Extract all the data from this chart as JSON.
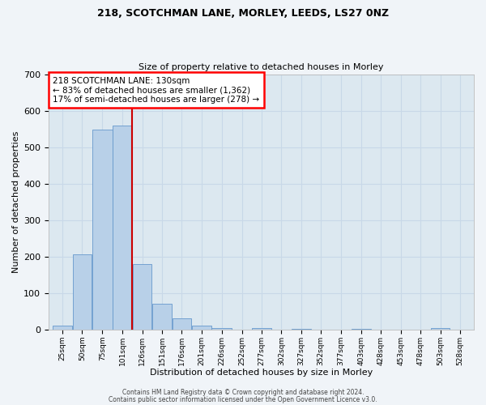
{
  "title1": "218, SCOTCHMAN LANE, MORLEY, LEEDS, LS27 0NZ",
  "title2": "Size of property relative to detached houses in Morley",
  "xlabel": "Distribution of detached houses by size in Morley",
  "ylabel": "Number of detached properties",
  "annotation_line1": "218 SCOTCHMAN LANE: 130sqm",
  "annotation_line2": "← 83% of detached houses are smaller (1,362)",
  "annotation_line3": "17% of semi-detached houses are larger (278) →",
  "bar_color": "#b8d0e8",
  "bar_edge_color": "#6699cc",
  "background_color": "#dce8f0",
  "grid_color": "#c8d8e8",
  "red_line_color": "#cc0000",
  "bin_starts": [
    25,
    50,
    75,
    101,
    126,
    151,
    176,
    201,
    226,
    252,
    277,
    302,
    327,
    352,
    377,
    403,
    428,
    453,
    478,
    503,
    528
  ],
  "bin_labels": [
    "25sqm",
    "50sqm",
    "75sqm",
    "101sqm",
    "126sqm",
    "151sqm",
    "176sqm",
    "201sqm",
    "226sqm",
    "252sqm",
    "277sqm",
    "302sqm",
    "327sqm",
    "352sqm",
    "377sqm",
    "403sqm",
    "428sqm",
    "453sqm",
    "478sqm",
    "503sqm",
    "528sqm"
  ],
  "values": [
    10,
    205,
    548,
    560,
    180,
    70,
    30,
    10,
    5,
    0,
    3,
    0,
    2,
    0,
    0,
    2,
    0,
    0,
    0,
    3,
    0
  ],
  "red_line_x": 126,
  "ylim": [
    0,
    700
  ],
  "yticks": [
    0,
    100,
    200,
    300,
    400,
    500,
    600,
    700
  ],
  "footer1": "Contains HM Land Registry data © Crown copyright and database right 2024.",
  "footer2": "Contains public sector information licensed under the Open Government Licence v3.0.",
  "fig_bg": "#f0f4f8"
}
